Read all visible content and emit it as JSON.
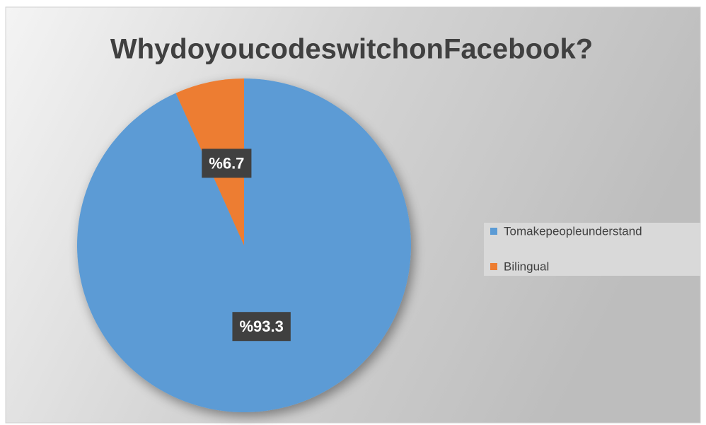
{
  "chart_data": {
    "type": "pie",
    "title": "WhydoyoucodeswitchonFacebook?",
    "categories": [
      "Tomakepeopleunderstand",
      "Bilingual"
    ],
    "values": [
      93.3,
      6.7
    ],
    "value_labels": [
      "%93.3",
      "%6.7"
    ],
    "colors": [
      "#5b9bd5",
      "#ed7d31"
    ],
    "legend": "right"
  }
}
